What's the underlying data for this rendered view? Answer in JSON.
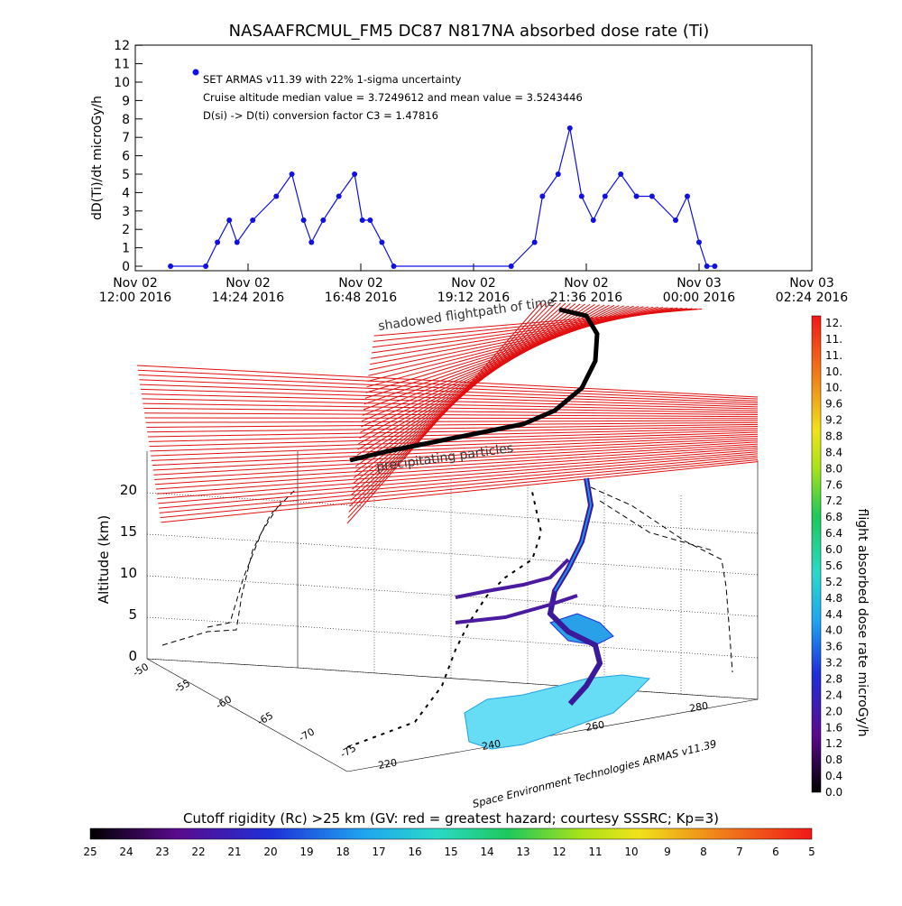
{
  "title": "NASAAFRCMUL_FM5 DC87 N817NA absorbed dose rate (Ti)",
  "top_panel": {
    "ylabel": "dD(Ti)/dt microGy/h",
    "legend_line1": "SET ARMAS v11.39 with 22% 1-sigma uncertainty",
    "legend_line2": "Cruise altitude median value = 3.7249612 and mean value = 3.5243446",
    "legend_line3": "D(si) -> D(ti) conversion factor C3 = 1.47816",
    "y_ticks": [
      "0",
      "1",
      "2",
      "3",
      "4",
      "5",
      "6",
      "7",
      "8",
      "9",
      "10",
      "11",
      "12"
    ],
    "x_ticks": [
      {
        "date": "Nov 02",
        "time": "12:00 2016"
      },
      {
        "date": "Nov 02",
        "time": "14:24 2016"
      },
      {
        "date": "Nov 02",
        "time": "16:48 2016"
      },
      {
        "date": "Nov 02",
        "time": "19:12 2016"
      },
      {
        "date": "Nov 02",
        "time": "21:36 2016"
      },
      {
        "date": "Nov 03",
        "time": "00:00 2016"
      },
      {
        "date": "Nov 03",
        "time": "02:24 2016"
      }
    ],
    "color": "#1010e0"
  },
  "chart_data": [
    {
      "type": "line",
      "title": "NASAAFRCMUL_FM5 DC87 N817NA absorbed dose rate (Ti)",
      "xlabel": "",
      "ylabel": "dD(Ti)/dt microGy/h",
      "ylim": [
        0,
        12
      ],
      "series": [
        {
          "name": "SET ARMAS v11.39 with 22% 1-sigma uncertainty",
          "x": [
            "2016-11-02 12:45",
            "2016-11-02 13:30",
            "2016-11-02 13:45",
            "2016-11-02 14:00",
            "2016-11-02 14:10",
            "2016-11-02 14:30",
            "2016-11-02 15:00",
            "2016-11-02 15:20",
            "2016-11-02 15:35",
            "2016-11-02 15:45",
            "2016-11-02 16:00",
            "2016-11-02 16:20",
            "2016-11-02 16:40",
            "2016-11-02 16:50",
            "2016-11-02 17:00",
            "2016-11-02 17:15",
            "2016-11-02 17:30",
            "2016-11-02 20:00",
            "2016-11-02 20:30",
            "2016-11-02 20:40",
            "2016-11-02 21:00",
            "2016-11-02 21:15",
            "2016-11-02 21:30",
            "2016-11-02 21:45",
            "2016-11-02 22:00",
            "2016-11-02 22:20",
            "2016-11-02 22:40",
            "2016-11-02 23:00",
            "2016-11-02 23:30",
            "2016-11-02 23:45",
            "2016-11-03 00:00",
            "2016-11-03 00:10",
            "2016-11-03 00:20"
          ],
          "y": [
            0,
            0,
            1.3,
            2.5,
            1.3,
            2.5,
            3.8,
            5,
            2.5,
            1.3,
            2.5,
            3.8,
            5,
            2.5,
            2.5,
            1.3,
            0,
            0,
            1.3,
            3.8,
            5,
            7.5,
            3.8,
            2.5,
            3.8,
            5,
            3.8,
            3.8,
            2.5,
            3.8,
            1.3,
            0,
            0
          ]
        }
      ]
    },
    {
      "type": "scatter",
      "title": "",
      "zlabel": "Altitude (km)",
      "z_ticks": [
        "0",
        "5",
        "10",
        "15",
        "20"
      ],
      "lat_ticks": [
        "-50",
        "-55",
        "-60",
        "-65",
        "-70",
        "-75"
      ],
      "lon_ticks": [
        "220",
        "240",
        "260",
        "280"
      ],
      "annotations": [
        "shadowed flightpath of time",
        "precipitating particles"
      ],
      "credit": "Space Environment Technologies ARMAS v11.39",
      "colorbar_label": "flight absorbed dose rate microGy/h",
      "colorbar_ticks": [
        "12.",
        "11.",
        "11.",
        "10.",
        "10.",
        "9.6",
        "9.2",
        "8.8",
        "8.4",
        "8.0",
        "7.6",
        "7.2",
        "6.8",
        "6.4",
        "6.0",
        "5.6",
        "5.2",
        "4.8",
        "4.4",
        "4.0",
        "3.6",
        "3.2",
        "2.8",
        "2.4",
        "2.0",
        "1.6",
        "1.2",
        "0.8",
        "0.4",
        "0.0"
      ],
      "rigidity_label": "Cutoff rigidity (Rc) >25 km (GV: red = greatest hazard; courtesy SSSRC; Kp=3)",
      "rigidity_ticks": [
        "25",
        "24",
        "23",
        "22",
        "21",
        "20",
        "19",
        "18",
        "17",
        "16",
        "15",
        "14",
        "13",
        "12",
        "11",
        "10",
        "9",
        "8",
        "7",
        "6",
        "5"
      ]
    }
  ]
}
